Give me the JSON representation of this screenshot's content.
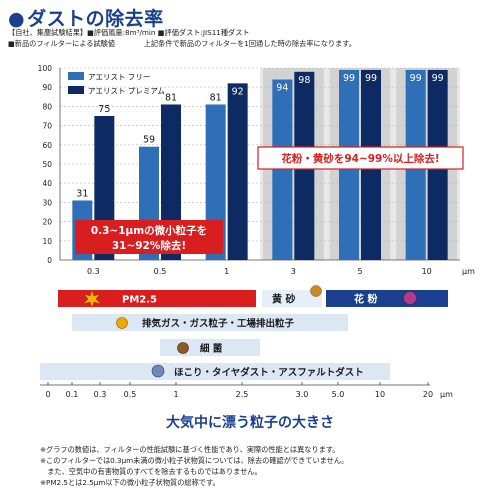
{
  "title": "ダストの除去率",
  "notes": [
    "【自社、集塵試験結果】■評価風量:8m³/min ■評価ダスト:JIS11種ダスト",
    "■新品のフィルターによる試験値　　　　上記条件で新品のフィルターを1回通した時の除去率になります。"
  ],
  "colors": {
    "free": "#2e6fb8",
    "premium": "#0d2a63",
    "accent": "#d81e1e",
    "dark_band": "#1b3f8f"
  },
  "chart_data": {
    "type": "bar",
    "categories": [
      "0.3",
      "0.5",
      "1",
      "3",
      "5",
      "10"
    ],
    "x_unit": "μm",
    "series": [
      {
        "name": "アエリスト フリー",
        "values": [
          31,
          59,
          81,
          94,
          99,
          99
        ]
      },
      {
        "name": "アエリスト プレミアム",
        "values": [
          75,
          81,
          92,
          98,
          99,
          99
        ]
      }
    ],
    "ylim": [
      0,
      100
    ],
    "yticks": [
      "0",
      "10",
      "20",
      "30",
      "40",
      "50",
      "60",
      "70",
      "80",
      "90",
      "100"
    ],
    "ytick_values": [
      0,
      10,
      20,
      30,
      40,
      50,
      60,
      70,
      80,
      90,
      100
    ],
    "legend_position": "top-left",
    "grid": true
  },
  "callouts": {
    "small": [
      "0.3~1μmの微小粒子を",
      "31~92%除去!"
    ],
    "large": "花粉・黄砂を94~99%以上除去!"
  },
  "particle_bands": [
    {
      "label": "PM2.5",
      "icon": "pm25-icon"
    },
    {
      "label": "黄 砂",
      "icon": "yellow-sand-icon"
    },
    {
      "label": "花 粉",
      "icon": "pollen-icon"
    },
    {
      "label": "排気ガス・ガス粒子・工場排出粒子",
      "icon": "exhaust-icon"
    },
    {
      "label": "細 菌",
      "icon": "bacteria-icon"
    },
    {
      "label": "ほこり・タイヤダスト・アスファルトダスト",
      "icon": "dust-icon"
    }
  ],
  "scale": {
    "ticks": [
      "0",
      "0.1",
      "0.3",
      "0.5",
      "1",
      "2.5",
      "3.0",
      "5.0",
      "10",
      "20"
    ],
    "unit": "μm",
    "tick_values": [
      0,
      0.1,
      0.3,
      0.5,
      1,
      2.5,
      3.0,
      5.0,
      10,
      20
    ]
  },
  "scale_title": "大気中に漂う粒子の大きさ",
  "footnotes": [
    "※グラフの数値は、フィルターの性能試験に基づく性能であり、実際の性能とは異なります。",
    "※このフィルターでは0.3μm未満の微小粒子状物質については、除去の確認ができていません。",
    "　また、空気中の有害物質のすべてを除去するものではありません。",
    "※PM2.5とは2.5μm以下の微小粒子状物質の総称です。"
  ]
}
